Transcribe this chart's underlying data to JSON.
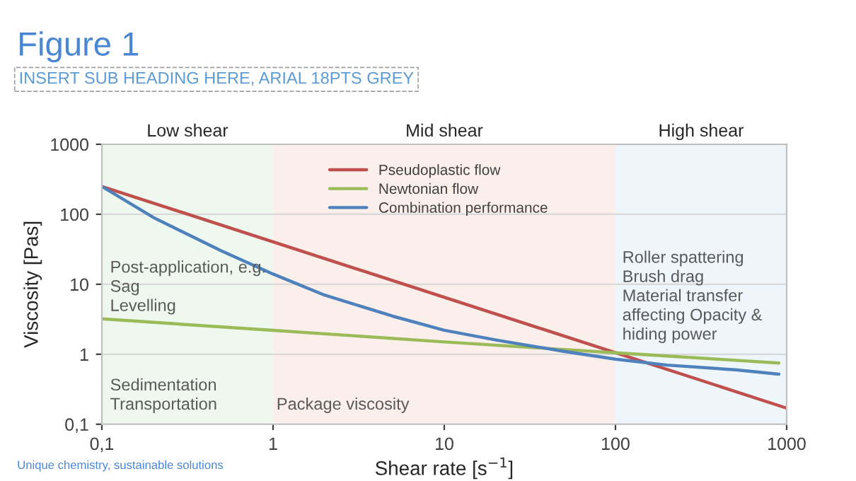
{
  "chart_data": {
    "type": "line",
    "title": "Figure 1",
    "subtitle": "INSERT SUB HEADING HERE, ARIAL 18PTS GREY",
    "xlabel": "Shear rate [s$^{−1}$]",
    "ylabel": "Viscosity [Pas]",
    "log": "xy",
    "xlim": [
      0.1,
      1000
    ],
    "ylim": [
      0.1,
      1000
    ],
    "xticks": [
      {
        "value": 0.1,
        "label": "0,1"
      },
      1,
      10,
      100,
      1000
    ],
    "yticks": [
      {
        "value": 0.1,
        "label": "0,1"
      },
      1,
      10,
      100,
      1000
    ],
    "grid": "y",
    "legend": "top right",
    "line_style": "solid",
    "marker": "none",
    "series": [
      {
        "name": "Pseudoplastic flow",
        "color": "#c0504d",
        "x": [
          0.1,
          1000
        ],
        "values": [
          250,
          0.17
        ]
      },
      {
        "name": "Newtonian flow",
        "color": "#9bbb59",
        "x": [
          0.1,
          1,
          10,
          100,
          900
        ],
        "values": [
          3.2,
          2.2,
          1.5,
          1.05,
          0.75
        ]
      },
      {
        "name": "Combination performance",
        "color": "#4f81bd",
        "x": [
          0.1,
          0.2,
          0.5,
          1,
          2,
          5,
          10,
          20,
          50,
          100,
          200,
          500,
          900
        ],
        "values": [
          250,
          90,
          30,
          14,
          7,
          3.5,
          2.2,
          1.6,
          1.1,
          0.85,
          0.7,
          0.6,
          0.52
        ]
      }
    ],
    "bands": [
      {
        "axis": "x",
        "from": 0.1,
        "to": 1,
        "label": "Low shear",
        "color": "#eef8ef"
      },
      {
        "axis": "x",
        "from": 1,
        "to": 100,
        "label": "Mid shear",
        "color": "#fbefec"
      },
      {
        "axis": "x",
        "from": 100,
        "to": 1000,
        "label": "High shear",
        "color": "#eef6fb"
      }
    ],
    "annotations": [
      "Post-application, e.g.\nSag\nLevelling",
      "Sedimentation\nTransportation",
      "Package viscosity",
      "Roller spattering\nBrush drag\nMaterial transfer\naffecting Opacity &\nhiding power",
      "Unique chemistry, sustainable solutions"
    ]
  }
}
